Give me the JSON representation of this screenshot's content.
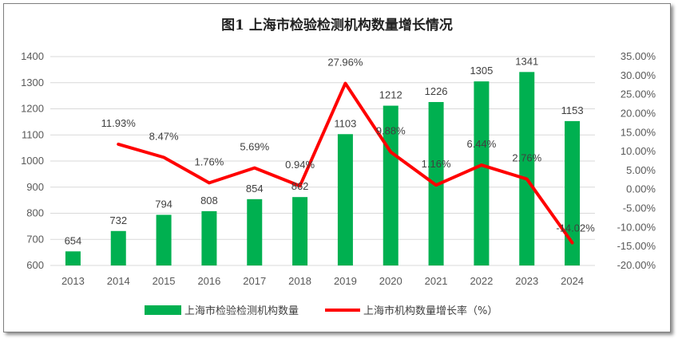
{
  "chart_data": {
    "type": "bar+line",
    "title": "图1 上海市检验检测机构数量增长情况",
    "categories": [
      "2013",
      "2014",
      "2015",
      "2016",
      "2017",
      "2018",
      "2019",
      "2020",
      "2021",
      "2022",
      "2023",
      "2024"
    ],
    "series": [
      {
        "name": "上海市检验检测机构数量",
        "type": "bar",
        "axis": "left",
        "color": "#00b050",
        "values": [
          654,
          732,
          794,
          808,
          854,
          862,
          1103,
          1212,
          1226,
          1305,
          1341,
          1153
        ],
        "labels": [
          "654",
          "732",
          "794",
          "808",
          "854",
          "862",
          "1103",
          "1212",
          "1226",
          "1305",
          "1341",
          "1153"
        ]
      },
      {
        "name": "上海市机构数量增长率（%）",
        "type": "line",
        "axis": "right",
        "color": "#ff0000",
        "values": [
          null,
          11.93,
          8.47,
          1.76,
          5.69,
          0.94,
          27.96,
          9.88,
          1.16,
          6.44,
          2.76,
          -14.02
        ],
        "labels": [
          "",
          "11.93%",
          "8.47%",
          "1.76%",
          "5.69%",
          "0.94%",
          "27.96%",
          "9.88%",
          "1.16%",
          "6.44%",
          "2.76%",
          "-14.02%"
        ]
      }
    ],
    "y_left": {
      "min": 600,
      "max": 1400,
      "step": 100,
      "ticks": [
        "600",
        "700",
        "800",
        "900",
        "1000",
        "1100",
        "1200",
        "1300",
        "1400"
      ]
    },
    "y_right": {
      "min": -20,
      "max": 35,
      "step": 5,
      "ticks": [
        "-20.00%",
        "-15.00%",
        "-10.00%",
        "-5.00%",
        "0.00%",
        "5.00%",
        "10.00%",
        "15.00%",
        "20.00%",
        "25.00%",
        "30.00%",
        "35.00%"
      ]
    },
    "grid": true,
    "legend": "bottom"
  }
}
